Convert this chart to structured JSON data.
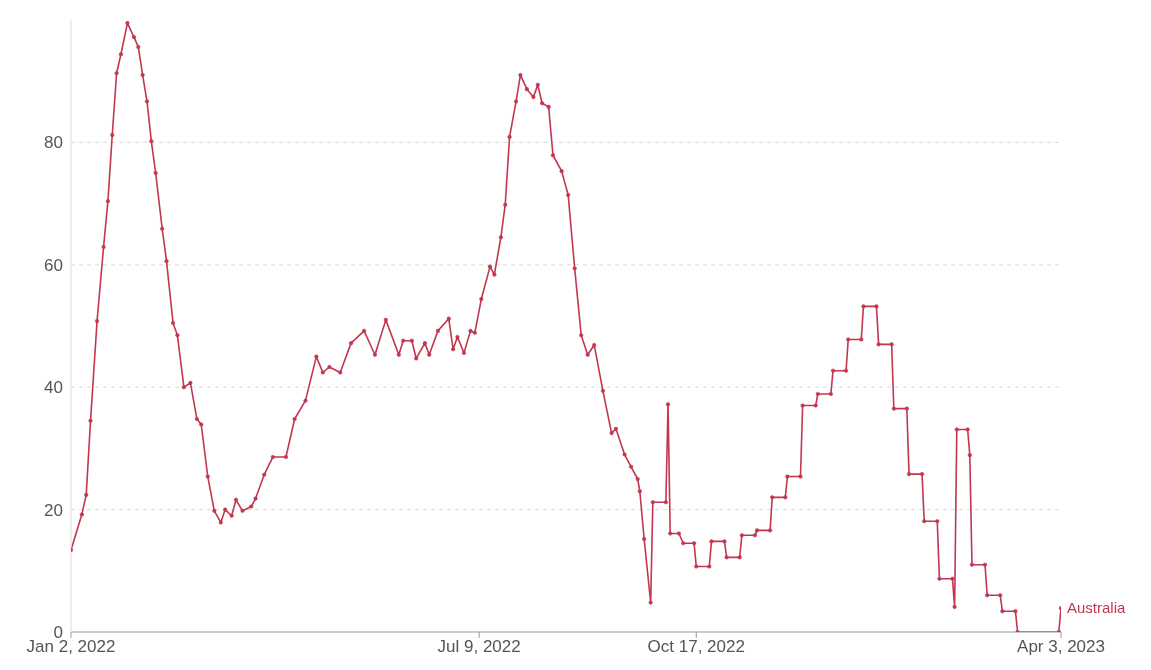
{
  "chart_data": {
    "type": "line",
    "marker": "circle",
    "line_style": "solid",
    "grid": "y",
    "legend": false,
    "xlim": [
      "2022-01-02",
      "2023-04-03"
    ],
    "xticks": [
      {
        "value": "2022-01-02",
        "label": "Jan 2, 2022"
      },
      {
        "value": "2022-07-09",
        "label": "Jul 9, 2022"
      },
      {
        "value": "2022-10-17",
        "label": "Oct 17, 2022"
      },
      {
        "value": "2023-04-03",
        "label": "Apr 3, 2023"
      }
    ],
    "ylim": [
      0,
      100
    ],
    "yticks": [
      0,
      20,
      40,
      60,
      80
    ],
    "x": [
      "2022-01-02",
      "2022-01-07",
      "2022-01-09",
      "2022-01-11",
      "2022-01-14",
      "2022-01-17",
      "2022-01-19",
      "2022-01-21",
      "2022-01-23",
      "2022-01-25",
      "2022-01-28",
      "2022-01-31",
      "2022-02-02",
      "2022-02-04",
      "2022-02-06",
      "2022-02-08",
      "2022-02-10",
      "2022-02-13",
      "2022-02-15",
      "2022-02-18",
      "2022-02-20",
      "2022-02-23",
      "2022-02-26",
      "2022-03-01",
      "2022-03-03",
      "2022-03-06",
      "2022-03-09",
      "2022-03-12",
      "2022-03-14",
      "2022-03-17",
      "2022-03-19",
      "2022-03-22",
      "2022-03-26",
      "2022-03-28",
      "2022-04-01",
      "2022-04-05",
      "2022-04-11",
      "2022-04-15",
      "2022-04-20",
      "2022-04-25",
      "2022-04-28",
      "2022-05-01",
      "2022-05-06",
      "2022-05-11",
      "2022-05-17",
      "2022-05-22",
      "2022-05-27",
      "2022-06-02",
      "2022-06-04",
      "2022-06-08",
      "2022-06-10",
      "2022-06-14",
      "2022-06-16",
      "2022-06-20",
      "2022-06-25",
      "2022-06-27",
      "2022-06-29",
      "2022-07-02",
      "2022-07-05",
      "2022-07-07",
      "2022-07-10",
      "2022-07-14",
      "2022-07-16",
      "2022-07-19",
      "2022-07-21",
      "2022-07-23",
      "2022-07-26",
      "2022-07-28",
      "2022-07-31",
      "2022-08-03",
      "2022-08-05",
      "2022-08-07",
      "2022-08-10",
      "2022-08-12",
      "2022-08-16",
      "2022-08-19",
      "2022-08-22",
      "2022-08-25",
      "2022-08-28",
      "2022-08-31",
      "2022-09-04",
      "2022-09-08",
      "2022-09-10",
      "2022-09-14",
      "2022-09-17",
      "2022-09-20",
      "2022-09-21",
      "2022-09-23",
      "2022-09-26",
      "2022-09-27",
      "2022-10-03",
      "2022-10-04",
      "2022-10-05",
      "2022-10-09",
      "2022-10-11",
      "2022-10-16",
      "2022-10-17",
      "2022-10-23",
      "2022-10-24",
      "2022-10-30",
      "2022-10-31",
      "2022-11-06",
      "2022-11-07",
      "2022-11-13",
      "2022-11-14",
      "2022-11-20",
      "2022-11-21",
      "2022-11-27",
      "2022-11-28",
      "2022-12-04",
      "2022-12-05",
      "2022-12-11",
      "2022-12-12",
      "2022-12-18",
      "2022-12-19",
      "2022-12-25",
      "2022-12-26",
      "2023-01-01",
      "2023-01-02",
      "2023-01-08",
      "2023-01-09",
      "2023-01-15",
      "2023-01-16",
      "2023-01-22",
      "2023-01-23",
      "2023-01-29",
      "2023-01-30",
      "2023-02-05",
      "2023-02-06",
      "2023-02-12",
      "2023-02-13",
      "2023-02-14",
      "2023-02-19",
      "2023-02-20",
      "2023-02-21",
      "2023-02-27",
      "2023-02-28",
      "2023-03-06",
      "2023-03-07",
      "2023-03-13",
      "2023-03-14",
      "2023-04-02",
      "2023-04-03"
    ],
    "series": [
      {
        "name": "Australia",
        "color": "#c2374f",
        "values": [
          13.4,
          19.2,
          22.4,
          34.5,
          50.8,
          62.9,
          70.4,
          81.2,
          91.3,
          94.4,
          99.5,
          97.2,
          95.6,
          91,
          86.7,
          80.2,
          75,
          65.9,
          60.6,
          50.5,
          48.5,
          40,
          40.7,
          34.8,
          33.9,
          25.4,
          19.8,
          17.9,
          20,
          19,
          21.6,
          19.8,
          20.5,
          21.8,
          25.7,
          28.6,
          28.6,
          34.8,
          37.8,
          45,
          42.4,
          43.3,
          42.4,
          47.2,
          49.2,
          45.3,
          51,
          45.3,
          47.6,
          47.6,
          44.7,
          47.2,
          45.3,
          49.2,
          51.2,
          46.2,
          48.2,
          45.6,
          49.2,
          48.9,
          54.4,
          59.7,
          58.4,
          64.5,
          69.8,
          80.9,
          86.7,
          91,
          88.7,
          87.4,
          89.4,
          86.4,
          85.8,
          77.9,
          75.3,
          71.4,
          59.4,
          48.5,
          45.3,
          46.9,
          39.4,
          32.5,
          33.2,
          29,
          27,
          25,
          23,
          15.2,
          4.8,
          21.2,
          21.2,
          37.2,
          16.1,
          16.1,
          14.5,
          14.5,
          10.7,
          10.7,
          14.8,
          14.8,
          12.2,
          12.2,
          15.8,
          15.8,
          16.6,
          16.6,
          22,
          22,
          25.4,
          25.4,
          37,
          37,
          38.9,
          38.9,
          42.7,
          42.7,
          47.8,
          47.8,
          53.2,
          53.2,
          47,
          47,
          36.5,
          36.5,
          25.8,
          25.8,
          18.1,
          18.1,
          8.7,
          8.7,
          4.1,
          33.1,
          33.1,
          28.9,
          11,
          11,
          6,
          6,
          3.4,
          3.4,
          0,
          0,
          3.9
        ]
      }
    ]
  }
}
